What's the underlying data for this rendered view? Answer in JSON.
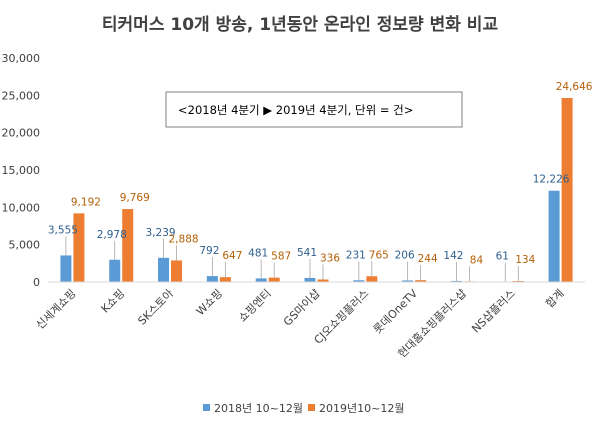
{
  "chart_data": {
    "type": "bar",
    "title": "티커머스 10개 방송, 1년동안 온라인 정보량 변화 비교",
    "annotation": "<2018년 4분기 ▶ 2019년 4분기, 단위 = 건>",
    "categories": [
      "신세계쇼핑",
      "K쇼핑",
      "SK스토아",
      "W쇼핑",
      "쇼핑엔티",
      "GS마이샵",
      "CJ오쇼핑플러스",
      "롯데OneTV",
      "현대홈쇼핑플러스샵",
      "NS샵플러스",
      "합계"
    ],
    "series": [
      {
        "name": "2018년 10~12월",
        "color": "#5B9BD5",
        "label_color": "#2E5F8E",
        "values": [
          3555,
          2978,
          3239,
          792,
          481,
          541,
          231,
          206,
          142,
          61,
          12226
        ],
        "labels": [
          "3,555",
          "2,978",
          "3,239",
          "792",
          "481",
          "541",
          "231",
          "206",
          "142",
          "61",
          "12,226"
        ]
      },
      {
        "name": "2019년10~12월",
        "color": "#ED7D31",
        "label_color": "#B45F06",
        "values": [
          9192,
          9769,
          2888,
          647,
          587,
          336,
          765,
          244,
          84,
          134,
          24646
        ],
        "labels": [
          "9,192",
          "9,769",
          "2,888",
          "647",
          "587",
          "336",
          "765",
          "244",
          "84",
          "134",
          "24,646"
        ]
      }
    ],
    "ylim": [
      0,
      30000
    ],
    "yticks": [
      0,
      5000,
      10000,
      15000,
      20000,
      25000,
      30000
    ],
    "ytick_labels": [
      "0",
      "5,000",
      "10,000",
      "15,000",
      "20,000",
      "25,000",
      "30,000"
    ],
    "grid": false,
    "legend_position": "bottom"
  }
}
